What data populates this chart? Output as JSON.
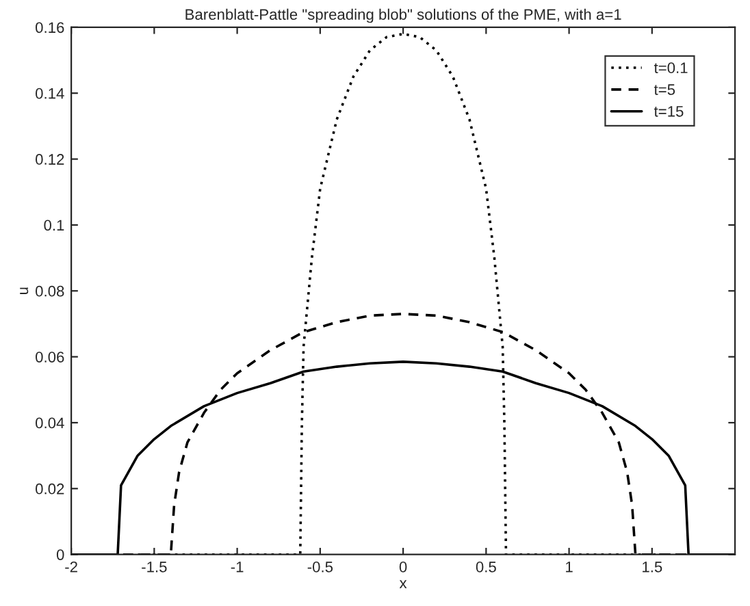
{
  "chart_data": {
    "type": "line",
    "title": "Barenblatt-Pattle \"spreading blob\" solutions of the PME, with a=1",
    "xlabel": "x",
    "ylabel": "u",
    "xlim": [
      -2,
      2
    ],
    "ylim": [
      0,
      0.16
    ],
    "xticks": [
      -2,
      -1.5,
      -1,
      -0.5,
      0,
      0.5,
      1,
      1.5
    ],
    "yticks": [
      0,
      0.02,
      0.04,
      0.06,
      0.08,
      0.1,
      0.12,
      0.14,
      0.16
    ],
    "grid": false,
    "legend": "top right",
    "series": [
      {
        "name": "t=0.1",
        "color": "#000000",
        "line_style": "dotted",
        "x": [
          -2,
          -0.62,
          -0.61,
          -0.6,
          -0.55,
          -0.5,
          -0.4,
          -0.3,
          -0.2,
          -0.1,
          0,
          0.1,
          0.2,
          0.3,
          0.4,
          0.5,
          0.55,
          0.6,
          0.61,
          0.62,
          2
        ],
        "values": [
          0,
          0,
          0.04,
          0.063,
          0.09,
          0.111,
          0.132,
          0.145,
          0.153,
          0.157,
          0.158,
          0.157,
          0.153,
          0.145,
          0.132,
          0.111,
          0.09,
          0.063,
          0.04,
          0,
          0
        ]
      },
      {
        "name": "t=5",
        "color": "#000000",
        "line_style": "dashed",
        "x": [
          -2,
          -1.4,
          -1.38,
          -1.35,
          -1.3,
          -1.2,
          -1.1,
          -1.0,
          -0.8,
          -0.6,
          -0.4,
          -0.2,
          0,
          0.2,
          0.4,
          0.6,
          0.8,
          1.0,
          1.1,
          1.2,
          1.3,
          1.35,
          1.38,
          1.4,
          2
        ],
        "values": [
          0,
          0,
          0.015,
          0.025,
          0.034,
          0.043,
          0.05,
          0.055,
          0.062,
          0.0675,
          0.0705,
          0.0725,
          0.073,
          0.0725,
          0.0705,
          0.0675,
          0.062,
          0.055,
          0.05,
          0.043,
          0.034,
          0.025,
          0.015,
          0,
          0
        ]
      },
      {
        "name": "t=15",
        "color": "#000000",
        "line_style": "solid",
        "x": [
          -2,
          -1.72,
          -1.7,
          -1.6,
          -1.5,
          -1.4,
          -1.2,
          -1.0,
          -0.8,
          -0.6,
          -0.4,
          -0.2,
          0,
          0.2,
          0.4,
          0.6,
          0.8,
          1.0,
          1.2,
          1.4,
          1.5,
          1.6,
          1.7,
          1.72,
          2
        ],
        "values": [
          0,
          0,
          0.021,
          0.03,
          0.035,
          0.039,
          0.045,
          0.049,
          0.052,
          0.0555,
          0.057,
          0.058,
          0.0585,
          0.058,
          0.057,
          0.0555,
          0.052,
          0.049,
          0.045,
          0.039,
          0.035,
          0.03,
          0.021,
          0,
          0
        ]
      }
    ]
  }
}
